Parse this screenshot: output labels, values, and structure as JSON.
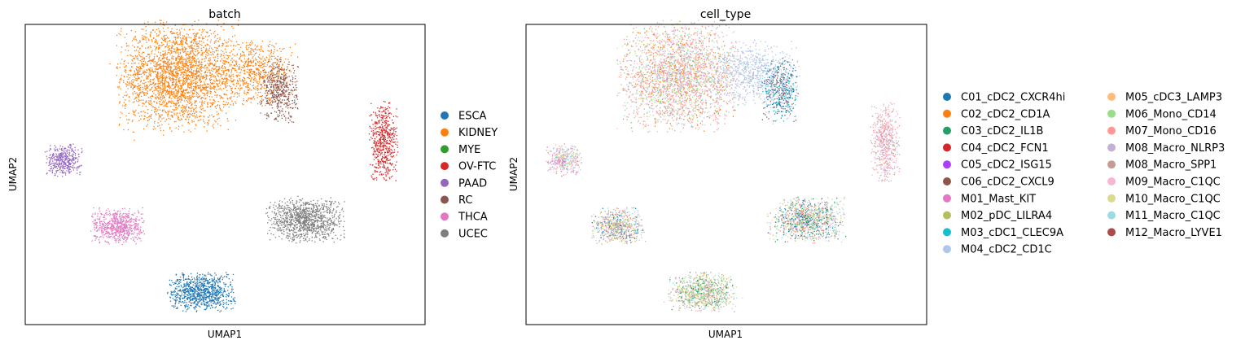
{
  "chart_data": [
    {
      "type": "scatter",
      "title": "batch",
      "xlabel": "UMAP1",
      "ylabel": "UMAP2",
      "grid": false,
      "ticks": false,
      "legend_position": "right",
      "legend": [
        {
          "label": "ESCA",
          "color": "#1f77b4"
        },
        {
          "label": "KIDNEY",
          "color": "#ff7f0e"
        },
        {
          "label": "MYE",
          "color": "#2ca02c"
        },
        {
          "label": "OV-FTC",
          "color": "#d62728"
        },
        {
          "label": "PAAD",
          "color": "#9467bd"
        },
        {
          "label": "RC",
          "color": "#8c564b"
        },
        {
          "label": "THCA",
          "color": "#e377c2"
        },
        {
          "label": "UCEC",
          "color": "#7f7f7f"
        }
      ],
      "clusters": [
        {
          "name": "KIDNEY",
          "x": 0.38,
          "y": 0.83,
          "sx": 0.07,
          "sy": 0.085,
          "color": "#ff7f0e",
          "n": 2600
        },
        {
          "name": "KIDNEY",
          "x": 0.57,
          "y": 0.84,
          "sx": 0.05,
          "sy": 0.05,
          "color": "#ff7f0e",
          "n": 700
        },
        {
          "name": "RC",
          "x": 0.635,
          "y": 0.78,
          "sx": 0.022,
          "sy": 0.05,
          "color": "#8c564b",
          "n": 450
        },
        {
          "name": "OV-FTC",
          "x": 0.895,
          "y": 0.61,
          "sx": 0.017,
          "sy": 0.062,
          "color": "#d62728",
          "n": 550
        },
        {
          "name": "PAAD",
          "x": 0.095,
          "y": 0.55,
          "sx": 0.021,
          "sy": 0.025,
          "color": "#9467bd",
          "n": 400
        },
        {
          "name": "THCA",
          "x": 0.23,
          "y": 0.33,
          "sx": 0.031,
          "sy": 0.028,
          "color": "#e377c2",
          "n": 650
        },
        {
          "name": "UCEC",
          "x": 0.7,
          "y": 0.35,
          "sx": 0.045,
          "sy": 0.035,
          "color": "#7f7f7f",
          "n": 1100
        },
        {
          "name": "ESCA",
          "x": 0.44,
          "y": 0.11,
          "sx": 0.039,
          "sy": 0.03,
          "color": "#1f77b4",
          "n": 900
        }
      ]
    },
    {
      "type": "scatter",
      "title": "cell_type",
      "xlabel": "UMAP1",
      "ylabel": "UMAP2",
      "grid": false,
      "ticks": false,
      "legend_position": "right",
      "legend_columns": 2,
      "legend": [
        {
          "label": "C01_cDC2_CXCR4hi",
          "color": "#1f77b4"
        },
        {
          "label": "C02_cDC2_CD1A",
          "color": "#ff7f0e"
        },
        {
          "label": "C03_cDC2_IL1B",
          "color": "#279e68"
        },
        {
          "label": "C04_cDC2_FCN1",
          "color": "#d62728"
        },
        {
          "label": "C05_cDC2_ISG15",
          "color": "#aa40fc"
        },
        {
          "label": "C06_cDC2_CXCL9",
          "color": "#8c564b"
        },
        {
          "label": "M01_Mast_KIT",
          "color": "#e377c2"
        },
        {
          "label": "M02_pDC_LILRA4",
          "color": "#b5bd61"
        },
        {
          "label": "M03_cDC1_CLEC9A",
          "color": "#17becf"
        },
        {
          "label": "M04_cDC2_CD1C",
          "color": "#aec7e8"
        },
        {
          "label": "M05_cDC3_LAMP3",
          "color": "#ffbb78"
        },
        {
          "label": "M06_Mono_CD14",
          "color": "#98df8a"
        },
        {
          "label": "M07_Mono_CD16",
          "color": "#ff9896"
        },
        {
          "label": "M08_Macro_NLRP3",
          "color": "#c5b0d5"
        },
        {
          "label": "M08_Macro_SPP1",
          "color": "#c49c94"
        },
        {
          "label": "M09_Macro_C1QC",
          "color": "#f7b6d2"
        },
        {
          "label": "M10_Macro_C1QC",
          "color": "#dbdb8d"
        },
        {
          "label": "M11_Macro_C1QC",
          "color": "#9edae5"
        },
        {
          "label": "M12_Macro_LYVE1",
          "color": "#ad494a"
        }
      ],
      "clusters": [
        {
          "x": 0.38,
          "y": 0.83,
          "sx": 0.07,
          "sy": 0.085,
          "n": 2600,
          "palette": [
            "#ff9896",
            "#ff9896",
            "#ff9896",
            "#c49c94",
            "#f7b6d2",
            "#98df8a",
            "#dbdb8d",
            "#ff7f0e",
            "#9edae5",
            "#c5b0d5"
          ]
        },
        {
          "x": 0.57,
          "y": 0.84,
          "sx": 0.05,
          "sy": 0.05,
          "n": 700,
          "palette": [
            "#aec7e8",
            "#aec7e8",
            "#aec7e8",
            "#aec7e8",
            "#9edae5",
            "#c5b0d5"
          ]
        },
        {
          "x": 0.635,
          "y": 0.78,
          "sx": 0.022,
          "sy": 0.05,
          "n": 450,
          "palette": [
            "#1f77b4",
            "#1f77b4",
            "#aec7e8",
            "#8c564b",
            "#17becf"
          ]
        },
        {
          "x": 0.895,
          "y": 0.61,
          "sx": 0.017,
          "sy": 0.062,
          "n": 550,
          "palette": [
            "#c49c94",
            "#f7b6d2",
            "#f7b6d2",
            "#ff9896",
            "#c5b0d5"
          ]
        },
        {
          "x": 0.095,
          "y": 0.55,
          "sx": 0.021,
          "sy": 0.025,
          "n": 400,
          "palette": [
            "#f7b6d2",
            "#e377c2",
            "#9edae5",
            "#dbdb8d",
            "#c5b0d5"
          ]
        },
        {
          "x": 0.23,
          "y": 0.33,
          "sx": 0.031,
          "sy": 0.028,
          "n": 650,
          "palette": [
            "#c49c94",
            "#dbdb8d",
            "#9edae5",
            "#1f77b4",
            "#ff9896",
            "#b5bd61",
            "#c5b0d5"
          ]
        },
        {
          "x": 0.7,
          "y": 0.35,
          "sx": 0.045,
          "sy": 0.035,
          "n": 1100,
          "palette": [
            "#c49c94",
            "#98df8a",
            "#dbdb8d",
            "#ff9896",
            "#9edae5",
            "#1f77b4",
            "#279e68",
            "#c5b0d5"
          ]
        },
        {
          "x": 0.44,
          "y": 0.11,
          "sx": 0.039,
          "sy": 0.03,
          "n": 900,
          "palette": [
            "#dbdb8d",
            "#98df8a",
            "#c49c94",
            "#b5bd61",
            "#9edae5",
            "#279e68",
            "#f7b6d2"
          ]
        }
      ]
    }
  ]
}
